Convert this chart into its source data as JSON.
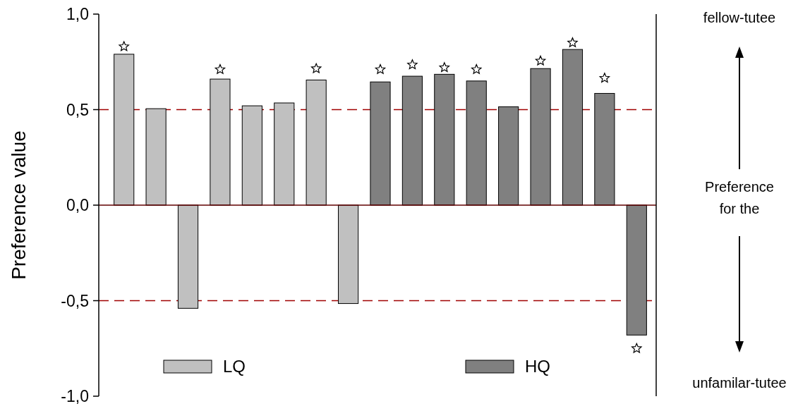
{
  "chart_data": {
    "type": "bar",
    "ylabel": "Preference value",
    "categories": [
      null,
      null,
      null,
      null,
      null,
      null,
      null,
      null,
      null,
      null,
      null,
      null,
      null,
      null,
      null,
      null,
      null
    ],
    "series": [
      {
        "name": "LQ",
        "color": "#c0c0c0",
        "values": [
          0.79,
          0.505,
          -0.54,
          0.66,
          0.52,
          0.535,
          0.655,
          -0.515,
          null,
          null,
          null,
          null,
          null,
          null,
          null,
          null,
          null
        ]
      },
      {
        "name": "HQ",
        "color": "#808080",
        "values": [
          null,
          null,
          null,
          null,
          null,
          null,
          null,
          null,
          0.645,
          0.675,
          0.685,
          0.65,
          0.515,
          0.715,
          0.815,
          0.585,
          -0.68
        ]
      },
      {
        "type": "scatter",
        "marker": "star",
        "color": "#ffffff",
        "values": [
          0.83,
          null,
          null,
          0.71,
          null,
          null,
          0.715,
          null,
          0.71,
          0.735,
          0.72,
          0.71,
          null,
          0.755,
          0.85,
          0.665,
          -0.75
        ]
      }
    ],
    "ylim": [
      -1,
      1
    ],
    "yticks": [
      {
        "value": -1,
        "label": "-1,0"
      },
      {
        "value": -0.5,
        "label": "-0,5"
      },
      {
        "value": 0,
        "label": "0,0"
      },
      {
        "value": 0.5,
        "label": "0,5"
      },
      {
        "value": 1,
        "label": "1,0"
      }
    ],
    "ref_lines": [
      {
        "axis": "y",
        "value": 0.5,
        "color": "#a00000",
        "line_style": "dashed"
      },
      {
        "axis": "y",
        "value": -0.5,
        "color": "#a00000",
        "line_style": "dashed"
      }
    ],
    "legend": "bottom",
    "annotations": [
      "fellow-tutee",
      "Preference for the",
      "unfamilar-tutee"
    ]
  }
}
